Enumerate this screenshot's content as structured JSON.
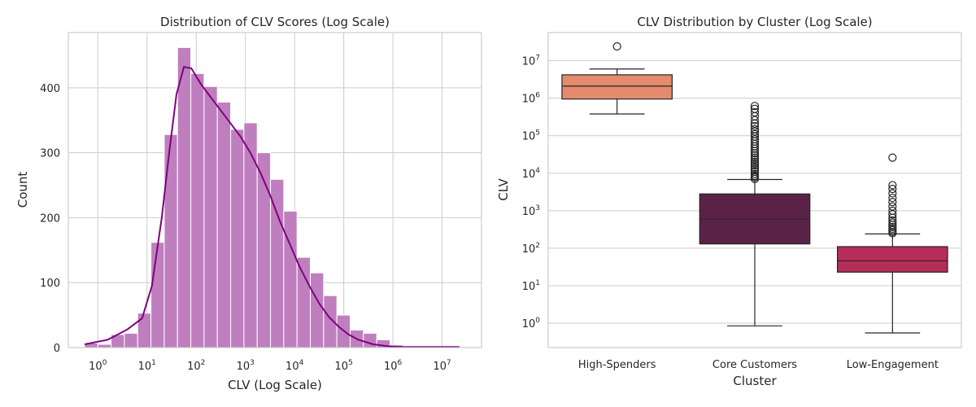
{
  "chart_data": [
    {
      "type": "histogram",
      "title": "Distribution of CLV Scores (Log Scale)",
      "xlabel": "CLV (Log Scale)",
      "ylabel": "Count",
      "x_scale": "log",
      "x_tick_labels": [
        {
          "base": "10",
          "exp": "0",
          "value": 1
        },
        {
          "base": "10",
          "exp": "1",
          "value": 10
        },
        {
          "base": "10",
          "exp": "2",
          "value": 100
        },
        {
          "base": "10",
          "exp": "3",
          "value": 1000
        },
        {
          "base": "10",
          "exp": "4",
          "value": 10000
        },
        {
          "base": "10",
          "exp": "5",
          "value": 100000
        },
        {
          "base": "10",
          "exp": "6",
          "value": 1000000
        },
        {
          "base": "10",
          "exp": "7",
          "value": 10000000
        }
      ],
      "y_ticks": [
        0,
        100,
        200,
        300,
        400
      ],
      "ylim": [
        0,
        485
      ],
      "xlim_log10": [
        -0.6,
        7.8
      ],
      "grid": true,
      "bar_color": "#bf7fbf",
      "kde_color": "#800080",
      "bins_log10_edges": [
        -0.27,
        0.0,
        0.27,
        0.54,
        0.81,
        1.08,
        1.35,
        1.62,
        1.89,
        2.16,
        2.43,
        2.7,
        2.97,
        3.24,
        3.51,
        3.78,
        4.05,
        4.32,
        4.59,
        4.86,
        5.13,
        5.4,
        5.67,
        5.94,
        6.21,
        6.48,
        6.75,
        7.02,
        7.29
      ],
      "counts": [
        7,
        5,
        20,
        22,
        53,
        162,
        328,
        462,
        422,
        402,
        378,
        336,
        346,
        300,
        259,
        210,
        139,
        115,
        80,
        50,
        27,
        22,
        12,
        4,
        2,
        1,
        1,
        0
      ],
      "kde": {
        "x_log10": [
          -0.27,
          0.2,
          0.6,
          0.9,
          1.1,
          1.3,
          1.45,
          1.6,
          1.75,
          1.9,
          2.1,
          2.3,
          2.5,
          2.7,
          2.9,
          3.1,
          3.3,
          3.5,
          3.7,
          3.9,
          4.1,
          4.3,
          4.5,
          4.7,
          4.9,
          5.1,
          5.3,
          5.6,
          5.9,
          6.2,
          6.6,
          7.0,
          7.35
        ],
        "y": [
          5,
          12,
          28,
          45,
          95,
          200,
          300,
          390,
          432,
          430,
          405,
          385,
          365,
          345,
          325,
          300,
          270,
          235,
          195,
          160,
          125,
          95,
          68,
          47,
          32,
          20,
          12,
          5,
          2,
          1,
          1,
          1,
          1
        ]
      }
    },
    {
      "type": "box",
      "title": "CLV Distribution by Cluster (Log Scale)",
      "xlabel": "Cluster",
      "ylabel": "CLV",
      "y_scale": "log",
      "y_tick_labels": [
        {
          "base": "10",
          "exp": "0",
          "value": 1
        },
        {
          "base": "10",
          "exp": "1",
          "value": 10
        },
        {
          "base": "10",
          "exp": "2",
          "value": 100
        },
        {
          "base": "10",
          "exp": "3",
          "value": 1000
        },
        {
          "base": "10",
          "exp": "4",
          "value": 10000
        },
        {
          "base": "10",
          "exp": "5",
          "value": 100000
        },
        {
          "base": "10",
          "exp": "6",
          "value": 1000000
        },
        {
          "base": "10",
          "exp": "7",
          "value": 10000000
        }
      ],
      "ylim_log10": [
        -0.65,
        7.75
      ],
      "grid": true,
      "categories": [
        "High-Spenders",
        "Core Customers",
        "Low-Engagement"
      ],
      "boxes": [
        {
          "name": "High-Spenders",
          "color": "#e48a6d",
          "whisker_low": 380000,
          "q1": 950000,
          "median": 2100000,
          "q3": 4200000,
          "whisker_high": 6000000,
          "outliers": [
            24000000
          ]
        },
        {
          "name": "Core Customers",
          "color": "#5b2247",
          "whisker_low": 0.85,
          "q1": 130,
          "median": 600,
          "q3": 2800,
          "whisker_high": 6800,
          "outliers": [
            7000,
            7800,
            8500,
            9500,
            11000,
            12500,
            14000,
            16000,
            18000,
            20000,
            23000,
            26000,
            30000,
            34000,
            39000,
            45000,
            52000,
            60000,
            70000,
            80000,
            95000,
            110000,
            130000,
            150000,
            180000,
            210000,
            260000,
            330000,
            420000,
            520000,
            620000
          ]
        },
        {
          "name": "Low-Engagement",
          "color": "#b72d59",
          "whisker_low": 0.55,
          "q1": 23,
          "median": 46,
          "q3": 110,
          "whisker_high": 240,
          "outliers": [
            250,
            270,
            300,
            330,
            370,
            420,
            480,
            550,
            650,
            800,
            1000,
            1300,
            1700,
            2200,
            2900,
            3800,
            4800,
            26000
          ]
        }
      ]
    }
  ]
}
